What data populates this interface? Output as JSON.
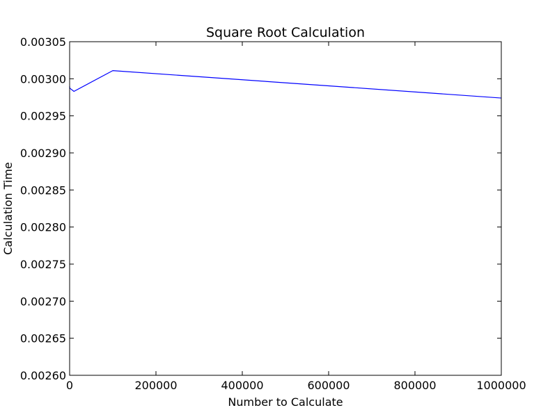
{
  "chart_data": {
    "type": "line",
    "title": "Square Root Calculation",
    "xlabel": "Number to Calculate",
    "ylabel": "Calculation Time",
    "xlim": [
      0,
      1000000
    ],
    "ylim": [
      0.0026,
      0.00305
    ],
    "x_ticks": [
      0,
      200000,
      400000,
      600000,
      800000,
      1000000
    ],
    "x_tick_labels": [
      "0",
      "200000",
      "400000",
      "600000",
      "800000",
      "1000000"
    ],
    "y_ticks": [
      0.0026,
      0.00265,
      0.0027,
      0.00275,
      0.0028,
      0.00285,
      0.0029,
      0.00295,
      0.003,
      0.00305
    ],
    "y_tick_labels": [
      "0.00260",
      "0.00265",
      "0.00270",
      "0.00275",
      "0.00280",
      "0.00285",
      "0.00290",
      "0.00295",
      "0.00300",
      "0.00305"
    ],
    "grid": false,
    "line_color": "#0000ff",
    "series": [
      {
        "x": [
          1,
          10,
          100,
          1000,
          10000,
          100000,
          1000000
        ],
        "y": [
          0.00299,
          0.002989,
          0.002988,
          0.002987,
          0.002983,
          0.003011,
          0.002974
        ]
      }
    ]
  }
}
